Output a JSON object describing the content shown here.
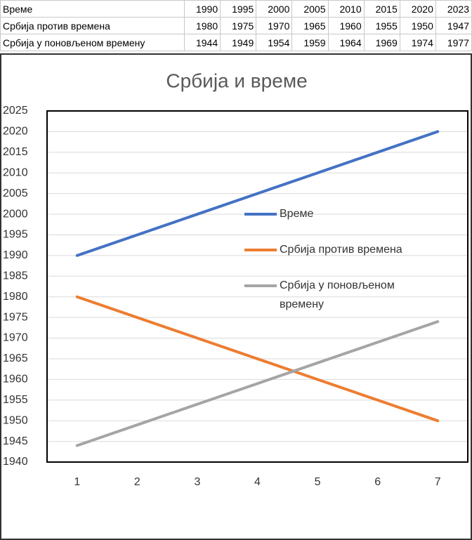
{
  "table": {
    "rows": [
      [
        "Време",
        1990,
        1995,
        2000,
        2005,
        2010,
        2015,
        2020,
        2023
      ],
      [
        "Србија против времена",
        1980,
        1975,
        1970,
        1965,
        1960,
        1955,
        1950,
        1947
      ],
      [
        "Србија у поновљеном времену",
        1944,
        1949,
        1954,
        1959,
        1964,
        1969,
        1974,
        1977
      ]
    ]
  },
  "chart_data": {
    "type": "line",
    "title": "Србија и време",
    "categories": [
      1,
      2,
      3,
      4,
      5,
      6,
      7
    ],
    "series": [
      {
        "name": "Време",
        "color": "#4472c4",
        "values": [
          1990,
          1995,
          2000,
          2005,
          2010,
          2015,
          2020
        ]
      },
      {
        "name": "Србија против времена",
        "color": "#ed7d31",
        "values": [
          1980,
          1975,
          1970,
          1965,
          1960,
          1955,
          1950
        ]
      },
      {
        "name": "Србија у поновљеном времену",
        "color": "#a5a5a5",
        "values": [
          1944,
          1949,
          1954,
          1959,
          1964,
          1969,
          1974
        ]
      }
    ],
    "ylim": [
      1940,
      2025
    ],
    "yticks": [
      1940,
      1945,
      1950,
      1955,
      1960,
      1965,
      1970,
      1975,
      1980,
      1985,
      1990,
      1995,
      2000,
      2005,
      2010,
      2015,
      2020,
      2025
    ],
    "grid": true
  }
}
